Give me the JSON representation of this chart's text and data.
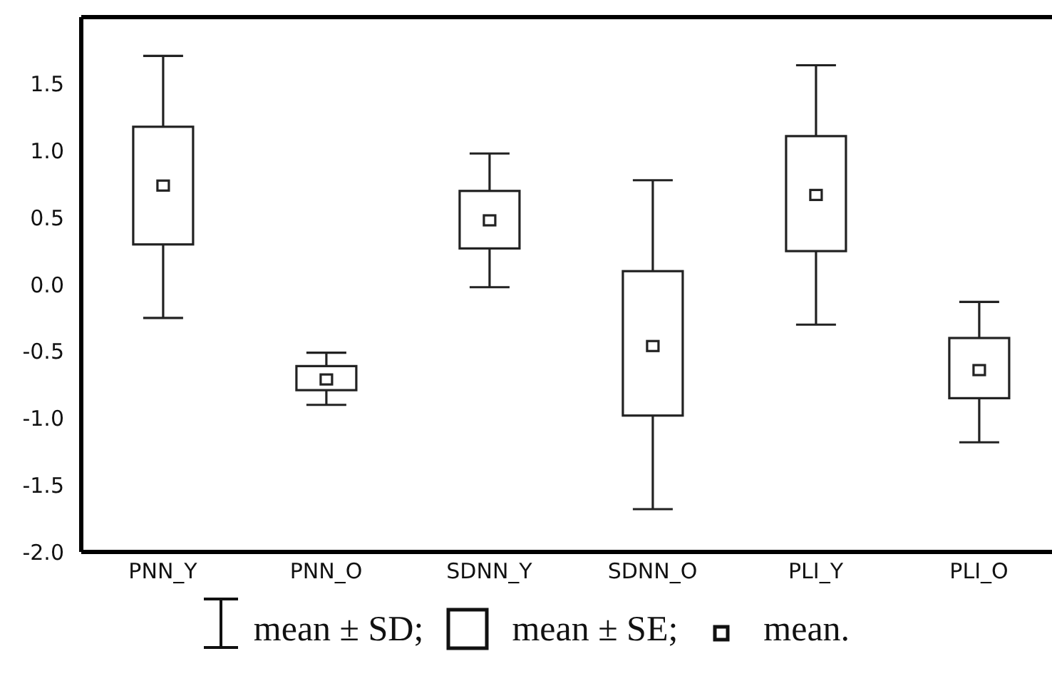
{
  "chart_data": {
    "type": "box",
    "categories": [
      "PNN_Y",
      "PNN_O",
      "SDNN_Y",
      "SDNN_O",
      "PLI_Y",
      "PLI_O"
    ],
    "boxes": [
      {
        "low": -0.25,
        "q1": 0.3,
        "q3": 1.18,
        "high": 1.71,
        "mean": 0.74
      },
      {
        "low": -0.9,
        "q1": -0.79,
        "q3": -0.61,
        "high": -0.51,
        "mean": -0.71
      },
      {
        "low": -0.02,
        "q1": 0.27,
        "q3": 0.7,
        "high": 0.98,
        "mean": 0.48
      },
      {
        "low": -1.68,
        "q1": -0.98,
        "q3": 0.1,
        "high": 0.78,
        "mean": -0.46
      },
      {
        "low": -0.3,
        "q1": 0.25,
        "q3": 1.11,
        "high": 1.64,
        "mean": 0.67
      },
      {
        "low": -1.18,
        "q1": -0.85,
        "q3": -0.4,
        "high": -0.13,
        "mean": -0.64
      }
    ],
    "color": "#222222",
    "ylim": [
      -2,
      2
    ],
    "yticks": [
      {
        "value": -2,
        "label": "-2.0"
      },
      {
        "value": -1.5,
        "label": "-1.5"
      },
      {
        "value": -1,
        "label": "-1.0"
      },
      {
        "value": -0.5,
        "label": "-0.5"
      },
      {
        "value": 0,
        "label": "0.0"
      },
      {
        "value": 0.5,
        "label": "0.5"
      },
      {
        "value": 1,
        "label": "1.0"
      },
      {
        "value": 1.5,
        "label": "1.5"
      }
    ],
    "grid": false,
    "annotations": [
      "mean ± SD;",
      "mean ± SE;",
      "mean."
    ]
  }
}
